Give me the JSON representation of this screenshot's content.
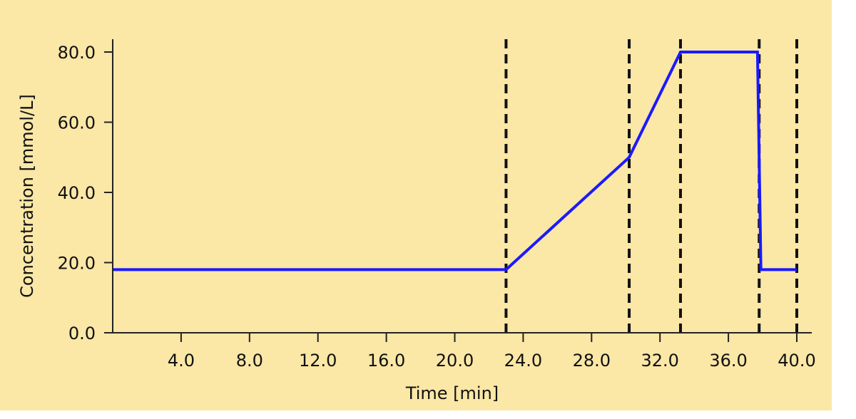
{
  "chart_data": {
    "type": "line",
    "xlabel": "Time [min]",
    "ylabel": "Concentration [mmol/L]",
    "xlim": [
      0,
      40.0
    ],
    "ylim": [
      0,
      80.0
    ],
    "x_ticks": [
      4.0,
      8.0,
      12.0,
      16.0,
      20.0,
      24.0,
      28.0,
      32.0,
      36.0,
      40.0
    ],
    "x_tick_labels": [
      "4.0",
      "8.0",
      "12.0",
      "16.0",
      "20.0",
      "24.0",
      "28.0",
      "32.0",
      "36.0",
      "40.0"
    ],
    "y_ticks": [
      0.0,
      20.0,
      40.0,
      60.0,
      80.0
    ],
    "y_tick_labels": [
      "0.0",
      "20.0",
      "40.0",
      "60.0",
      "80.0"
    ],
    "grid": false,
    "series": [
      {
        "points": [
          [
            0,
            18
          ],
          [
            23.0,
            18
          ],
          [
            30.2,
            50
          ],
          [
            33.2,
            80
          ],
          [
            37.7,
            80
          ],
          [
            37.9,
            18
          ],
          [
            40.0,
            18
          ]
        ]
      }
    ],
    "vertical_lines": [
      23.0,
      30.2,
      33.2,
      37.8,
      40.0
    ],
    "colors": {
      "background": "#fbe7a6",
      "line": "#1a1aff",
      "axes": "#222222",
      "markers": "#111111"
    }
  }
}
